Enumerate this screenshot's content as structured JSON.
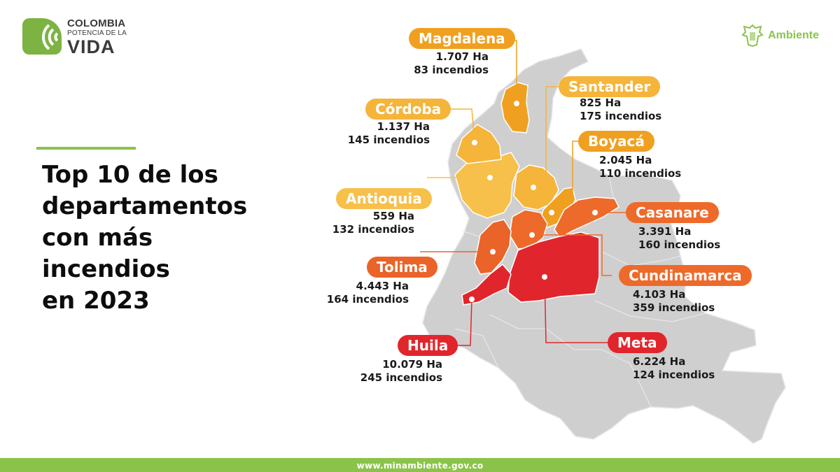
{
  "logo": {
    "line1": "COLOMBIA",
    "line2": "POTENCIA DE LA",
    "line3": "VIDA"
  },
  "ministry": {
    "label": "Ambiente"
  },
  "title": {
    "line1": "Top 10 de los",
    "line2": "departamentos",
    "line3": "con más",
    "line4": "incendios",
    "line5": "en 2023"
  },
  "departments": [
    {
      "name": "Magdalena",
      "area": "1.707 Ha",
      "fires": "83 incendios",
      "color": "#f0a020"
    },
    {
      "name": "Santander",
      "area": "825 Ha",
      "fires": "175 incendios",
      "color": "#f5b43a"
    },
    {
      "name": "Córdoba",
      "area": "1.137 Ha",
      "fires": "145 incendios",
      "color": "#f5b43a"
    },
    {
      "name": "Boyacá",
      "area": "2.045 Ha",
      "fires": "110 incendios",
      "color": "#f0a020"
    },
    {
      "name": "Antioquia",
      "area": "559 Ha",
      "fires": "132 incendios",
      "color": "#f7c04a"
    },
    {
      "name": "Casanare",
      "area": "3.391 Ha",
      "fires": "160 incendios",
      "color": "#ee6a2a"
    },
    {
      "name": "Tolima",
      "area": "4.443 Ha",
      "fires": "164 incendios",
      "color": "#ea6328"
    },
    {
      "name": "Cundinamarca",
      "area": "4.103 Ha",
      "fires": "359 incendios",
      "color": "#ee6a2a"
    },
    {
      "name": "Huila",
      "area": "10.079 Ha",
      "fires": "245 incendios",
      "color": "#e0262c"
    },
    {
      "name": "Meta",
      "area": "6.224 Ha",
      "fires": "124 incendios",
      "color": "#e0262c"
    }
  ],
  "colors": {
    "base_map": "#cfcfcf",
    "brand_green": "#8bc34a"
  },
  "footer": {
    "url": "www.minambiente.gov.co"
  }
}
